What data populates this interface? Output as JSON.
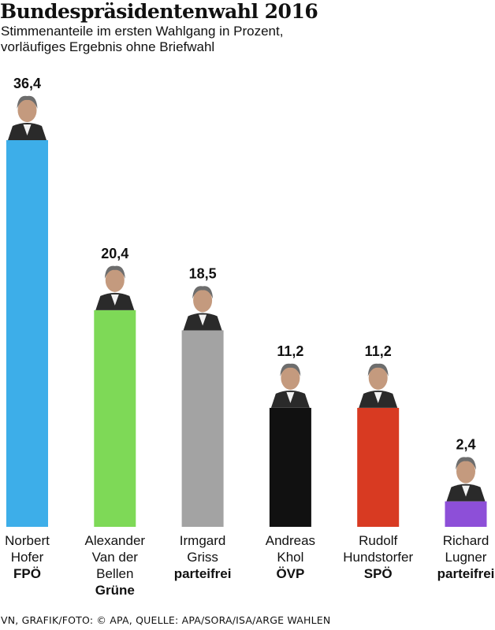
{
  "chart_data": {
    "type": "bar",
    "title": "Bundespräsidentenwahl 2016",
    "subtitle": [
      "Stimmenanteile im ersten Wahlgang in Prozent,",
      "vorläufiges Ergebnis ohne Briefwahl"
    ],
    "value_labels": [
      "36,4",
      "20,4",
      "18,5",
      "11,2",
      "11,2",
      "2,4"
    ],
    "categories": [
      "Norbert Hofer",
      "Alexander Van der Bellen",
      "Irmgard Griss",
      "Andreas Khol",
      "Rudolf Hundstorfer",
      "Richard Lugner"
    ],
    "name_lines": [
      [
        "Norbert",
        "Hofer"
      ],
      [
        "Alexander",
        "Van der",
        "Bellen"
      ],
      [
        "Irmgard",
        "Griss"
      ],
      [
        "Andreas",
        "Khol"
      ],
      [
        "Rudolf",
        "Hundstorfer"
      ],
      [
        "Richard",
        "Lugner"
      ]
    ],
    "parties": [
      "FPÖ",
      "Grüne",
      "parteifrei",
      "ÖVP",
      "SPÖ",
      "parteifrei"
    ],
    "values": [
      36.4,
      20.4,
      18.5,
      11.2,
      11.2,
      2.4
    ],
    "colors": [
      "#3daee9",
      "#7ed957",
      "#a3a3a3",
      "#111111",
      "#d83a22",
      "#8d4fd8"
    ],
    "photo_icons": [
      "portrait-photo-icon",
      "portrait-photo-icon",
      "portrait-photo-icon",
      "portrait-photo-icon",
      "portrait-photo-icon",
      "portrait-photo-icon"
    ],
    "ylim": [
      0,
      36.4
    ],
    "xlabel": "",
    "ylabel": "",
    "grid": false,
    "legend": "none"
  },
  "source": "VN, GRAFIK/FOTO: © APA, QUELLE: APA/SORA/ISA/ARGE WAHLEN"
}
